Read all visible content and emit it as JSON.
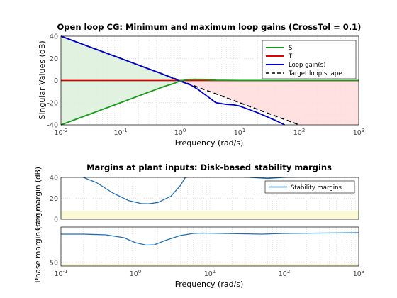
{
  "chart_data": [
    {
      "type": "line",
      "title": "Open loop CG: Minimum and maximum loop gains (CrossTol = 0.1)",
      "xlabel": "Frequency (rad/s)",
      "ylabel": "Singular Values (dB)",
      "xscale": "log",
      "xlim": [
        0.01,
        1000
      ],
      "ylim": [
        -40,
        40
      ],
      "xticks": [
        {
          "value": 0.01,
          "base": "10",
          "exp": "-2"
        },
        {
          "value": 0.1,
          "base": "10",
          "exp": "-1"
        },
        {
          "value": 1,
          "base": "10",
          "exp": "0"
        },
        {
          "value": 10,
          "base": "10",
          "exp": "1"
        },
        {
          "value": 100,
          "base": "10",
          "exp": "2"
        },
        {
          "value": 1000,
          "base": "10",
          "exp": "3"
        }
      ],
      "yticks": [
        {
          "value": 40,
          "label": "40"
        },
        {
          "value": 20,
          "label": "20"
        },
        {
          "value": 0,
          "label": "0"
        },
        {
          "value": -20,
          "label": "-20"
        },
        {
          "value": -40,
          "label": "-40"
        }
      ],
      "grid": true,
      "legend_position": "top-right",
      "shaded_regions": [
        {
          "color": "#dcf0dc",
          "x": [
            0.01,
            1,
            0.01
          ],
          "y": [
            40,
            0,
            -40
          ]
        },
        {
          "color": "#ffdcdc",
          "x": [
            1,
            1000,
            1000,
            100
          ],
          "y": [
            0,
            0,
            -40,
            -40
          ]
        }
      ],
      "series": [
        {
          "name": "S",
          "color": "#1a9a1a",
          "dash": "",
          "x": [
            0.01,
            0.1,
            0.5,
            0.8,
            1.0,
            1.3,
            1.7,
            2.5,
            4,
            10,
            100,
            1000
          ],
          "y": [
            -40,
            -20,
            -6,
            -2.5,
            -0.5,
            0.8,
            1.2,
            1.0,
            0.3,
            0.05,
            0,
            0
          ]
        },
        {
          "name": "T",
          "color": "#e00000",
          "dash": "",
          "x": [
            0.01,
            1000
          ],
          "y": [
            0,
            0
          ]
        },
        {
          "name": "Loop gain(s)",
          "color": "#0000cc",
          "dash": "",
          "x": [
            0.01,
            0.1,
            0.5,
            1.0,
            1.5,
            2,
            3,
            4,
            6,
            8,
            10,
            20,
            40,
            57
          ],
          "y": [
            40,
            20,
            6,
            -0.5,
            -4,
            -8,
            -15,
            -20,
            -21.5,
            -22,
            -23,
            -29,
            -36,
            -40
          ]
        },
        {
          "name": "Target loop shape",
          "color": "#000000",
          "dash": "6,4",
          "x": [
            0.01,
            100
          ],
          "y": [
            40,
            -40
          ]
        }
      ]
    },
    {
      "type": "line",
      "title": "Margins at plant inputs: Disk-based stability margins",
      "xlabel": "Frequency (rad/s)",
      "xscale": "log",
      "xlim": [
        0.1,
        1000
      ],
      "xticks": [
        {
          "value": 0.1,
          "base": "10",
          "exp": "-1"
        },
        {
          "value": 1,
          "base": "10",
          "exp": "0"
        },
        {
          "value": 10,
          "base": "10",
          "exp": "1"
        },
        {
          "value": 100,
          "base": "10",
          "exp": "2"
        },
        {
          "value": 1000,
          "base": "10",
          "exp": "3"
        }
      ],
      "grid": true,
      "legend_position": "top-right",
      "panels": [
        {
          "ylabel": "Gain margin (dB)",
          "ylim": [
            0,
            40
          ],
          "yticks": [
            {
              "value": 40,
              "label": "40"
            },
            {
              "value": 20,
              "label": "20"
            },
            {
              "value": 0,
              "label": "0"
            }
          ],
          "band": {
            "y": [
              0,
              8
            ],
            "color": "#fbf8d4"
          },
          "series": [
            {
              "name": "Stability margins",
              "color": "#1f6fb4",
              "x": [
                0.2,
                0.3,
                0.5,
                0.8,
                1.2,
                1.5,
                2,
                3,
                4,
                4.7,
                7,
                20,
                60,
                100,
                300,
                1000
              ],
              "y": [
                40,
                35,
                25,
                18,
                15,
                14.8,
                16,
                22,
                32,
                40,
                42,
                41,
                39,
                40,
                41,
                41
              ]
            }
          ]
        },
        {
          "ylabel": "Phase margin (deg)",
          "ylim": [
            45,
            100
          ],
          "yticks": [
            {
              "value": 50,
              "label": "50"
            }
          ],
          "band": {
            "y": [
              45,
              48
            ],
            "color": "#fbf8d4"
          },
          "series": [
            {
              "name": "Stability margins",
              "color": "#1f6fb4",
              "x": [
                0.1,
                0.2,
                0.4,
                0.7,
                1.0,
                1.4,
                1.8,
                2.5,
                4,
                6,
                8,
                15,
                50,
                100,
                300,
                1000
              ],
              "y": [
                90,
                90,
                89,
                85,
                78,
                74.5,
                75,
                81,
                88,
                91,
                91.5,
                91,
                90,
                91,
                91.5,
                92
              ]
            }
          ]
        }
      ]
    }
  ]
}
